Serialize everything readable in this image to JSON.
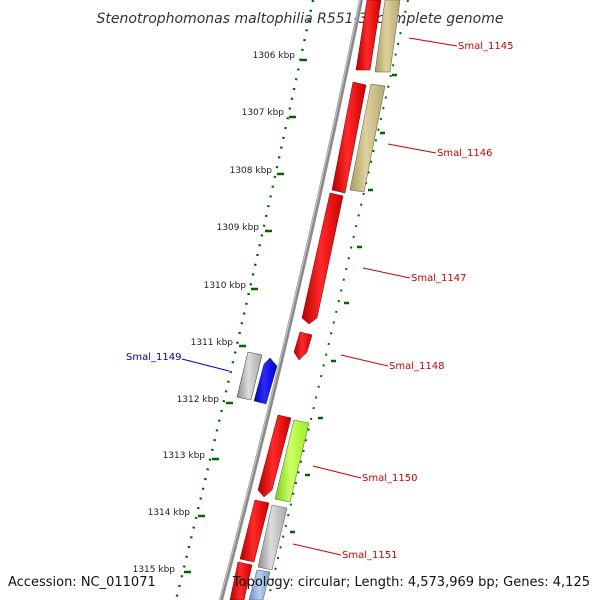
{
  "title": "Stenotrophomonas maltophilia R551-3, complete genome",
  "ticks": [
    "1306 kbp",
    "1307 kbp",
    "1308 kbp",
    "1309 kbp",
    "1310 kbp",
    "1311 kbp",
    "1312 kbp",
    "1313 kbp",
    "1314 kbp",
    "1315 kbp"
  ],
  "genes": [
    {
      "label": "Smal_1145",
      "color": "#cc0000"
    },
    {
      "label": "Smal_1146",
      "color": "#cc0000"
    },
    {
      "label": "Smal_1147",
      "color": "#cc0000"
    },
    {
      "label": "Smal_1148",
      "color": "#cc0000"
    },
    {
      "label": "Smal_1149",
      "color": "#000099"
    },
    {
      "label": "Smal_1150",
      "color": "#cc0000"
    },
    {
      "label": "Smal_1151",
      "color": "#cc0000"
    }
  ],
  "footer": {
    "accession": "Accession: NC_011071",
    "topology": "Topology: circular; Length: 4,573,969 bp; Genes: 4,125"
  },
  "colors": {
    "backbone": "#808080",
    "tick": "#006400",
    "cds_red": "#ff0000",
    "cds_tan": "#c8bc80",
    "cds_grey": "#b8b8b8",
    "cds_blue": "#0000ff",
    "cds_lime": "#aaff33"
  }
}
